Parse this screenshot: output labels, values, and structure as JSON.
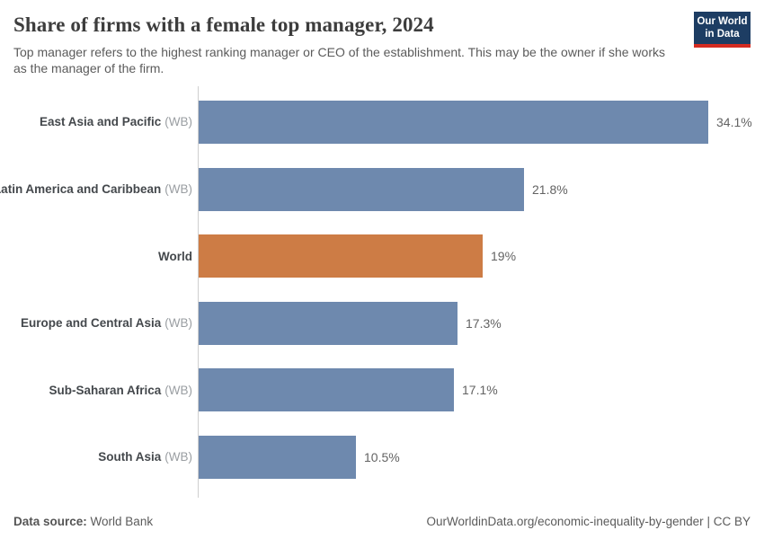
{
  "header": {
    "title": "Share of firms with a female top manager, 2024",
    "subtitle": "Top manager refers to the highest ranking manager or CEO of the establishment. This may be the owner if she works as the manager of the firm.",
    "logo": {
      "line1": "Our World",
      "line2": "in Data",
      "bg_color": "#1d3d63",
      "accent_color": "#d42b21"
    }
  },
  "chart_data": {
    "type": "bar",
    "orientation": "horizontal",
    "title": "Share of firms with a female top manager, 2024",
    "categories": [
      "East Asia and Pacific",
      "Latin America and Caribbean",
      "World",
      "Europe and Central Asia",
      "Sub-Saharan Africa",
      "South Asia"
    ],
    "category_suffixes": [
      "(WB)",
      "(WB)",
      "",
      "(WB)",
      "(WB)",
      "(WB)"
    ],
    "values": [
      34.1,
      21.8,
      19,
      17.3,
      17.1,
      10.5
    ],
    "value_labels": [
      "34.1%",
      "21.8%",
      "19%",
      "17.3%",
      "17.1%",
      "10.5%"
    ],
    "unit": "%",
    "bar_color": "#6e89ae",
    "highlight_color": "#cd7c45",
    "highlight_index": 2,
    "grid": false,
    "legend": "none",
    "axis_line_color": "#cfcfcf"
  },
  "footer": {
    "datasource_label": "Data source:",
    "datasource_value": "World Bank",
    "url": "OurWorldinData.org/economic-inequality-by-gender",
    "separator": "|",
    "license": "CC BY"
  }
}
